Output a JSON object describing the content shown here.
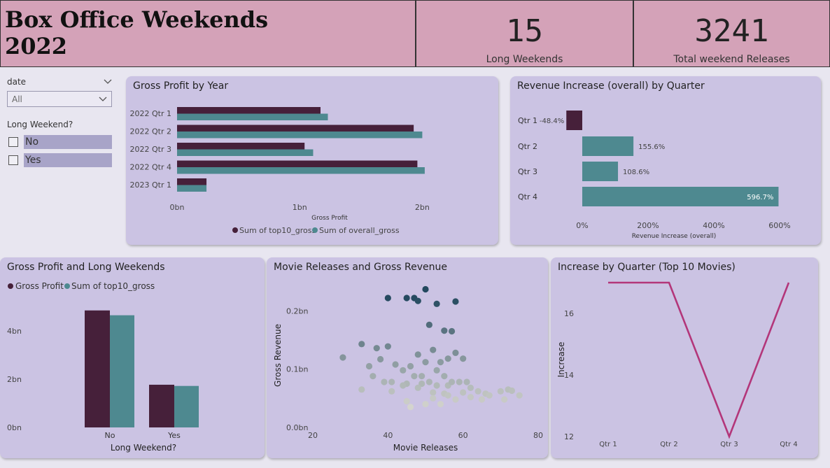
{
  "header": {
    "title_line1": "Box Office Weekends",
    "title_line2": "2022",
    "kpis": [
      {
        "value": "15",
        "label": "Long Weekends"
      },
      {
        "value": "3241",
        "label": "Total weekend Releases"
      }
    ]
  },
  "slicers": {
    "date_label": "date",
    "date_value": "All",
    "long_weekend_label": "Long Weekend?",
    "options": [
      "No",
      "Yes"
    ]
  },
  "colors": {
    "dark": "#46203a",
    "teal": "#4e8990",
    "magenta": "#b3367a"
  },
  "chart_data": [
    {
      "type": "bar",
      "orientation": "horizontal",
      "title": "Gross Profit by Year",
      "categories": [
        "2022 Qtr 1",
        "2022 Qtr 2",
        "2022 Qtr 3",
        "2022 Qtr 4",
        "2023 Qtr 1"
      ],
      "series": [
        {
          "name": "Sum of top10_gross",
          "values": [
            1.17,
            1.93,
            1.04,
            1.96,
            0.24
          ]
        },
        {
          "name": "Sum of overall_gross",
          "values": [
            1.23,
            2.0,
            1.11,
            2.02,
            0.24
          ]
        }
      ],
      "xlabel": "Gross Profit",
      "xticks": [
        "0bn",
        "1bn",
        "2bn"
      ],
      "xlim": [
        0,
        2.5
      ],
      "legend": "bottom"
    },
    {
      "type": "bar",
      "orientation": "horizontal",
      "title": "Revenue Increase (overall) by Quarter",
      "categories": [
        "Qtr 1",
        "Qtr 2",
        "Qtr 3",
        "Qtr 4"
      ],
      "values": [
        -48.4,
        155.6,
        108.6,
        596.7
      ],
      "data_labels": [
        "-48.4%",
        "155.6%",
        "108.6%",
        "596.7%"
      ],
      "xlabel": "Revenue Increase (overall)",
      "xticks": [
        "0%",
        "200%",
        "400%",
        "600%"
      ],
      "xlim": [
        -60,
        640
      ]
    },
    {
      "type": "bar",
      "title": "Gross Profit and Long Weekends",
      "categories": [
        "No",
        "Yes"
      ],
      "series": [
        {
          "name": "Gross Profit",
          "values": [
            4.85,
            1.77
          ]
        },
        {
          "name": "Sum of top10_gross",
          "values": [
            4.65,
            1.72
          ]
        }
      ],
      "xlabel": "Long Weekend?",
      "yticks": [
        "0bn",
        "2bn",
        "4bn"
      ],
      "ylim": [
        0,
        5.8
      ],
      "legend": "top-left"
    },
    {
      "type": "scatter",
      "title": "Movie Releases and Gross Revenue",
      "xlabel": "Movie Releases",
      "ylabel": "Gross Revenue",
      "xticks": [
        "20",
        "40",
        "60",
        "80"
      ],
      "yticks": [
        "0.0bn",
        "0.1bn",
        "0.2bn"
      ],
      "xlim": [
        20,
        80
      ],
      "ylim": [
        0,
        0.24
      ],
      "points": [
        [
          40,
          0.222
        ],
        [
          45,
          0.222
        ],
        [
          47,
          0.222
        ],
        [
          50,
          0.237
        ],
        [
          48,
          0.217
        ],
        [
          53,
          0.212
        ],
        [
          58,
          0.216
        ],
        [
          51,
          0.176
        ],
        [
          55,
          0.166
        ],
        [
          57,
          0.165
        ],
        [
          33,
          0.143
        ],
        [
          37,
          0.136
        ],
        [
          40,
          0.139
        ],
        [
          48,
          0.125
        ],
        [
          52,
          0.133
        ],
        [
          58,
          0.128
        ],
        [
          28,
          0.12
        ],
        [
          38,
          0.117
        ],
        [
          42,
          0.108
        ],
        [
          46,
          0.105
        ],
        [
          50,
          0.112
        ],
        [
          54,
          0.112
        ],
        [
          56,
          0.118
        ],
        [
          60,
          0.118
        ],
        [
          35,
          0.105
        ],
        [
          44,
          0.098
        ],
        [
          47,
          0.088
        ],
        [
          49,
          0.088
        ],
        [
          53,
          0.098
        ],
        [
          55,
          0.088
        ],
        [
          36,
          0.088
        ],
        [
          39,
          0.078
        ],
        [
          41,
          0.078
        ],
        [
          45,
          0.075
        ],
        [
          49,
          0.075
        ],
        [
          51,
          0.078
        ],
        [
          53,
          0.072
        ],
        [
          56,
          0.072
        ],
        [
          57,
          0.078
        ],
        [
          59,
          0.078
        ],
        [
          61,
          0.078
        ],
        [
          62,
          0.068
        ],
        [
          64,
          0.062
        ],
        [
          66,
          0.058
        ],
        [
          67,
          0.055
        ],
        [
          70,
          0.062
        ],
        [
          72,
          0.065
        ],
        [
          73,
          0.063
        ],
        [
          75,
          0.055
        ],
        [
          33,
          0.065
        ],
        [
          41,
          0.062
        ],
        [
          48,
          0.068
        ],
        [
          52,
          0.06
        ],
        [
          55,
          0.058
        ],
        [
          56,
          0.055
        ],
        [
          60,
          0.06
        ],
        [
          62,
          0.052
        ],
        [
          45,
          0.045
        ],
        [
          52,
          0.05
        ],
        [
          58,
          0.048
        ],
        [
          65,
          0.048
        ],
        [
          46,
          0.035
        ],
        [
          50,
          0.04
        ],
        [
          54,
          0.04
        ],
        [
          71,
          0.048
        ],
        [
          44,
          0.072
        ]
      ]
    },
    {
      "type": "line",
      "title": "Increase by Quarter (Top 10 Movies)",
      "ylabel": "Increase",
      "categories": [
        "Qtr 1",
        "Qtr 2",
        "Qtr 3",
        "Qtr 4"
      ],
      "values": [
        17.0,
        17.0,
        12.0,
        17.0
      ],
      "yticks": [
        "12",
        "14",
        "16"
      ],
      "ylim": [
        11.8,
        17.6
      ]
    }
  ]
}
